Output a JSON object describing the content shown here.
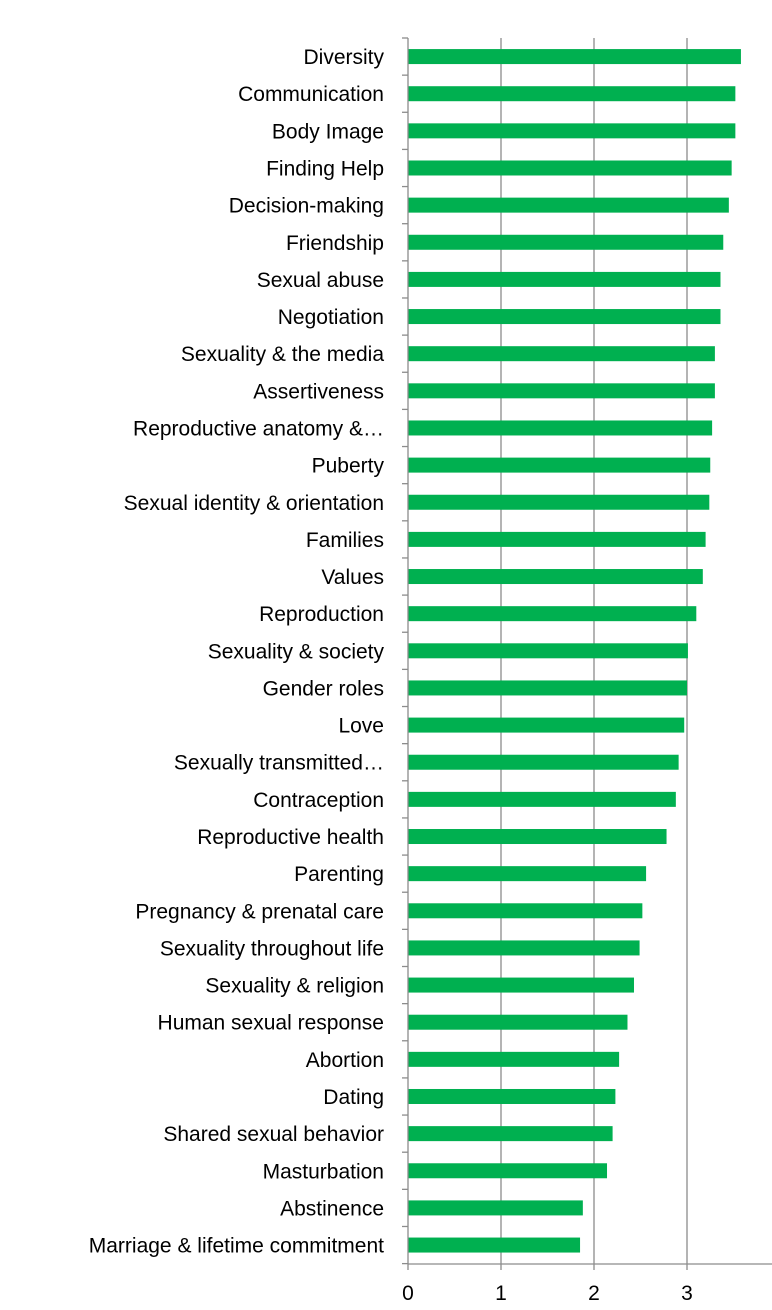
{
  "chart_data": {
    "type": "bar",
    "orientation": "horizontal",
    "title": "",
    "xlabel": "",
    "ylabel": "",
    "xlim": [
      0,
      3.6
    ],
    "x_ticks": [
      0,
      1,
      2,
      3
    ],
    "grid": "vertical",
    "bar_color": "#00b050",
    "categories": [
      "Diversity",
      "Communication",
      "Body Image",
      "Finding Help",
      "Decision-making",
      "Friendship",
      "Sexual abuse",
      "Negotiation",
      "Sexuality & the media",
      "Assertiveness",
      "Reproductive anatomy &…",
      "Puberty",
      "Sexual identity & orientation",
      "Families",
      "Values",
      "Reproduction",
      "Sexuality & society",
      "Gender roles",
      "Love",
      "Sexually transmitted…",
      "Contraception",
      "Reproductive health",
      "Parenting",
      "Pregnancy & prenatal care",
      "Sexuality throughout life",
      "Sexuality & religion",
      "Human sexual response",
      "Abortion",
      "Dating",
      "Shared sexual behavior",
      "Masturbation",
      "Abstinence",
      "Marriage & lifetime commitment"
    ],
    "values": [
      3.58,
      3.52,
      3.52,
      3.48,
      3.45,
      3.39,
      3.36,
      3.36,
      3.3,
      3.3,
      3.27,
      3.25,
      3.24,
      3.2,
      3.17,
      3.1,
      3.01,
      3.0,
      2.97,
      2.91,
      2.88,
      2.78,
      2.56,
      2.52,
      2.49,
      2.43,
      2.36,
      2.27,
      2.23,
      2.2,
      2.14,
      1.88,
      1.85
    ]
  }
}
